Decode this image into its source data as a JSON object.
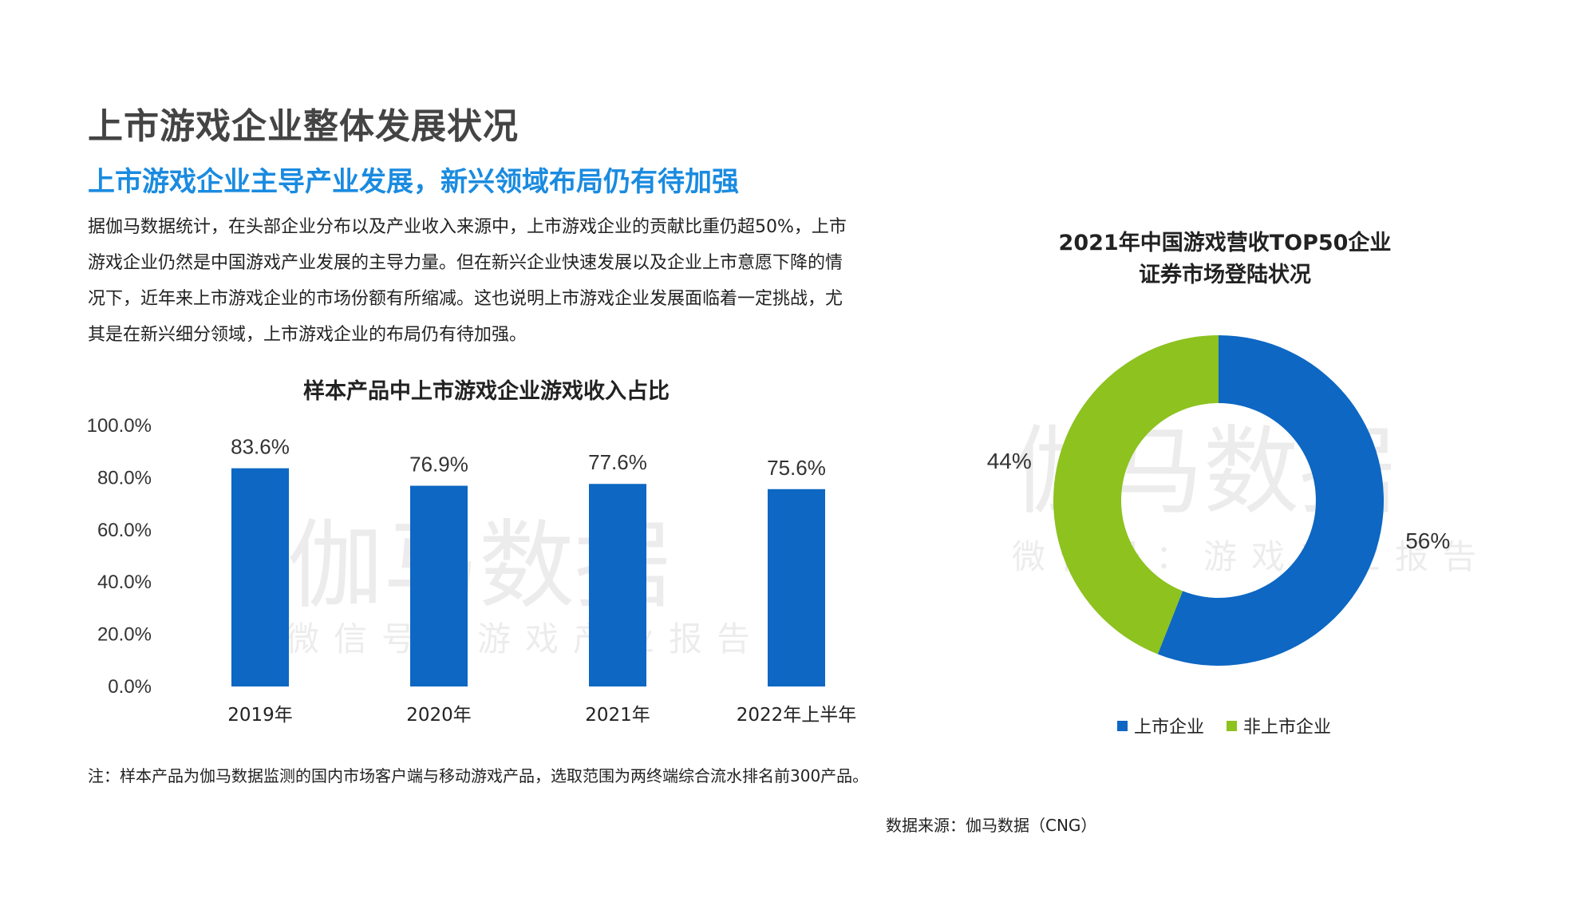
{
  "header": {
    "title": "上市游戏企业整体发展状况",
    "subtitle": "上市游戏企业主导产业发展，新兴领域布局仍有待加强",
    "body_lines": [
      "据伽马数据统计，在头部企业分布以及产业收入来源中，上市游戏企业的贡献比重仍超50%，上市",
      "游戏企业仍然是中国游戏产业发展的主导力量。但在新兴企业快速发展以及企业上市意愿下降的情",
      "况下，近年来上市游戏企业的市场份额有所缩减。这也说明上市游戏企业发展面临着一定挑战，尤",
      "其是在新兴细分领域，上市游戏企业的布局仍有待加强。"
    ]
  },
  "watermark": {
    "main": "伽马数据",
    "sub": "微信号：游戏产业报告"
  },
  "chart_data": [
    {
      "type": "bar",
      "title": "样本产品中上市游戏企业游戏收入占比",
      "categories": [
        "2019年",
        "2020年",
        "2021年",
        "2022年上半年"
      ],
      "values": [
        83.6,
        76.9,
        77.6,
        75.6
      ],
      "value_labels": [
        "83.6%",
        "76.9%",
        "77.6%",
        "75.6%"
      ],
      "ylim": [
        0,
        100
      ],
      "yticks": [
        "0.0%",
        "20.0%",
        "40.0%",
        "60.0%",
        "80.0%",
        "100.0%"
      ],
      "xlabel": "",
      "ylabel": "",
      "grid": false,
      "color": "#0d67c3"
    },
    {
      "type": "pie",
      "style": "donut",
      "title_lines": [
        "2021年中国游戏营收TOP50企业",
        "证券市场登陆状况"
      ],
      "slices": [
        {
          "label": "上市企业",
          "value": 56,
          "value_label": "56%",
          "color": "#0d67c3"
        },
        {
          "label": "非上市企业",
          "value": 44,
          "value_label": "44%",
          "color": "#8dc21f"
        }
      ],
      "legend_position": "bottom"
    }
  ],
  "footer": {
    "note": "注：样本产品为伽马数据监测的国内市场客户端与移动游戏产品，选取范围为两终端综合流水排名前300产品。",
    "source": "数据来源：伽马数据（CNG）"
  }
}
